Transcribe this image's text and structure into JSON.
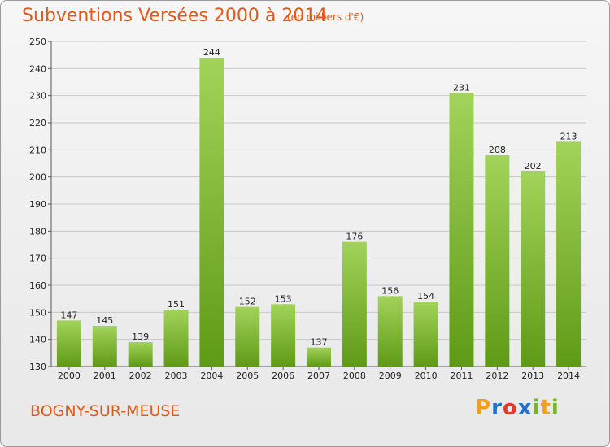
{
  "header": {
    "title": "Subventions Versées 2000 à 2014",
    "subtitle": "(en milliers d'€)"
  },
  "footer": {
    "commune": "BOGNY-SUR-MEUSE",
    "logo_text": "Proxiti",
    "logo_letters": [
      {
        "char": "P",
        "color": "#f0a020"
      },
      {
        "char": "r",
        "color": "#1e73c8"
      },
      {
        "char": "o",
        "color": "#e43c2c"
      },
      {
        "char": "x",
        "color": "#1e73c8"
      },
      {
        "char": "i",
        "color": "#78b428"
      },
      {
        "char": "t",
        "color": "#f0a020"
      },
      {
        "char": "i",
        "color": "#78b428"
      }
    ]
  },
  "colors": {
    "bar_light": "#a2d35a",
    "bar_dark": "#5f9a16",
    "accent": "#e05a18",
    "grid": "#c8c8c8"
  },
  "chart_data": {
    "type": "bar",
    "title": "Subventions Versées 2000 à 2014",
    "subtitle": "(en milliers d'€)",
    "categories": [
      "2000",
      "2001",
      "2002",
      "2003",
      "2004",
      "2005",
      "2006",
      "2007",
      "2008",
      "2009",
      "2010",
      "2011",
      "2012",
      "2013",
      "2014"
    ],
    "values": [
      147,
      145,
      139,
      151,
      244,
      152,
      153,
      137,
      176,
      156,
      154,
      231,
      208,
      202,
      213
    ],
    "ylim": [
      130,
      250
    ],
    "yticks": [
      130,
      140,
      150,
      160,
      170,
      180,
      190,
      200,
      210,
      220,
      230,
      240,
      250
    ],
    "grid": true,
    "data_labels": true
  }
}
